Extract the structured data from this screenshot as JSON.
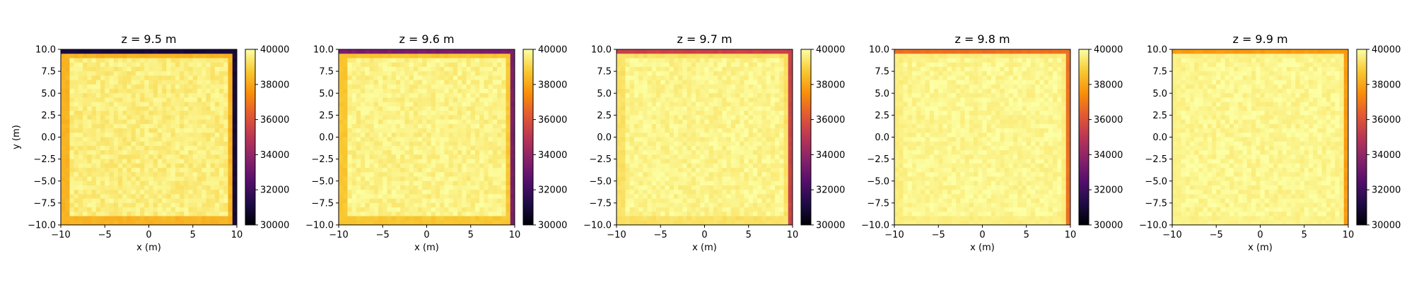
{
  "chart_data": {
    "type": "heatmap",
    "colormap": "inferno",
    "grid_resolution": [
      40,
      40
    ],
    "x_range": [
      -10,
      10
    ],
    "y_range": [
      -10,
      10
    ],
    "xlabel": "x (m)",
    "ylabel": "y (m)",
    "x_ticks": [
      -10,
      -5,
      0,
      5,
      10
    ],
    "y_ticks": [
      -10.0,
      -7.5,
      -5.0,
      -2.5,
      0.0,
      2.5,
      5.0,
      7.5,
      10.0
    ],
    "x_tick_labels": [
      "−10",
      "−5",
      "0",
      "5",
      "10"
    ],
    "y_tick_labels": [
      "−10.0",
      "−7.5",
      "−5.0",
      "−2.5",
      "0.0",
      "2.5",
      "5.0",
      "7.5",
      "10.0"
    ],
    "colorbar": {
      "range": [
        30000,
        40000
      ],
      "ticks": [
        30000,
        32000,
        34000,
        36000,
        38000,
        40000
      ],
      "tick_labels": [
        "30000",
        "32000",
        "34000",
        "36000",
        "38000",
        "40000"
      ]
    },
    "panels": [
      {
        "title": "z = 9.5 m",
        "interior_value": 39600,
        "noise": 300,
        "edge": {
          "top": 31000,
          "right": 31000,
          "inner_ring": 38300
        }
      },
      {
        "title": "z = 9.6 m",
        "interior_value": 39700,
        "noise": 280,
        "edge": {
          "top": 33500,
          "right": 33500,
          "inner_ring": 38700
        }
      },
      {
        "title": "z = 9.7 m",
        "interior_value": 39750,
        "noise": 260,
        "edge": {
          "top": 35500,
          "right": 35500,
          "inner_ring": 39300
        }
      },
      {
        "title": "z = 9.8 m",
        "interior_value": 39800,
        "noise": 250,
        "edge": {
          "top": 36800,
          "right": 36800,
          "inner_ring": 39600
        }
      },
      {
        "title": "z = 9.9 m",
        "interior_value": 39800,
        "noise": 250,
        "edge": {
          "top": 37800,
          "right": 37800,
          "inner_ring": 39700
        }
      }
    ]
  }
}
